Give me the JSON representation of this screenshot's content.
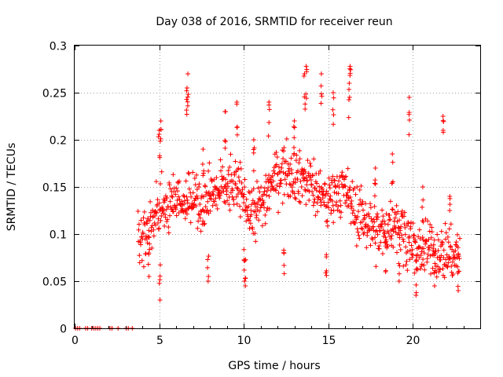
{
  "chart_data": {
    "type": "scatter",
    "title": "Day 038 of 2016, SRMTID for receiver reun",
    "xlabel": "GPS time / hours",
    "ylabel": "SRMTID / TECUs",
    "xlim": [
      0,
      24
    ],
    "ylim": [
      0,
      0.3
    ],
    "x_ticks": [
      0,
      5,
      10,
      15,
      20
    ],
    "x_tick_labels": [
      "0",
      "5",
      "10",
      "15",
      "20"
    ],
    "y_ticks": [
      0,
      0.05,
      0.1,
      0.15,
      0.2,
      0.25,
      0.3
    ],
    "y_tick_labels": [
      "0",
      "0.05",
      "0.1",
      "0.15",
      "0.2",
      "0.25",
      "0.3"
    ],
    "grid": true,
    "marker": "+",
    "color": "#ff0000",
    "series": [
      {
        "name": "SRMTID",
        "trend": [
          [
            0.05,
            0.0
          ],
          [
            3.7,
            0.0
          ],
          [
            3.75,
            0.095
          ],
          [
            4.0,
            0.09
          ],
          [
            4.5,
            0.11
          ],
          [
            5.0,
            0.125
          ],
          [
            5.5,
            0.13
          ],
          [
            6.0,
            0.14
          ],
          [
            6.5,
            0.135
          ],
          [
            7.0,
            0.14
          ],
          [
            7.5,
            0.13
          ],
          [
            8.0,
            0.14
          ],
          [
            8.5,
            0.145
          ],
          [
            9.0,
            0.15
          ],
          [
            9.5,
            0.15
          ],
          [
            10.0,
            0.14
          ],
          [
            10.5,
            0.12
          ],
          [
            11.0,
            0.13
          ],
          [
            11.5,
            0.15
          ],
          [
            12.0,
            0.165
          ],
          [
            12.5,
            0.17
          ],
          [
            13.0,
            0.165
          ],
          [
            13.5,
            0.16
          ],
          [
            14.0,
            0.155
          ],
          [
            14.5,
            0.14
          ],
          [
            15.0,
            0.135
          ],
          [
            15.5,
            0.15
          ],
          [
            16.0,
            0.145
          ],
          [
            16.5,
            0.125
          ],
          [
            17.0,
            0.12
          ],
          [
            17.5,
            0.11
          ],
          [
            18.0,
            0.1
          ],
          [
            18.5,
            0.105
          ],
          [
            19.0,
            0.115
          ],
          [
            19.5,
            0.105
          ],
          [
            20.0,
            0.085
          ],
          [
            20.5,
            0.08
          ],
          [
            21.0,
            0.085
          ],
          [
            21.5,
            0.08
          ],
          [
            22.0,
            0.08
          ],
          [
            22.5,
            0.075
          ],
          [
            22.8,
            0.08
          ]
        ],
        "spikes": [
          [
            6.7,
            0.27
          ],
          [
            6.65,
            0.255
          ],
          [
            8.9,
            0.23
          ],
          [
            11.5,
            0.24
          ],
          [
            13.6,
            0.27
          ],
          [
            13.7,
            0.278
          ],
          [
            14.6,
            0.27
          ],
          [
            15.3,
            0.25
          ],
          [
            16.3,
            0.278
          ],
          [
            16.25,
            0.26
          ],
          [
            19.8,
            0.245
          ],
          [
            21.8,
            0.225
          ],
          [
            5.1,
            0.22
          ],
          [
            5.0,
            0.21
          ],
          [
            7.6,
            0.19
          ],
          [
            9.6,
            0.24
          ],
          [
            10.6,
            0.2
          ],
          [
            13.0,
            0.22
          ],
          [
            17.8,
            0.17
          ],
          [
            18.8,
            0.185
          ],
          [
            20.6,
            0.15
          ],
          [
            22.2,
            0.14
          ],
          [
            5.05,
            0.03
          ],
          [
            7.9,
            0.05
          ],
          [
            10.05,
            0.05
          ],
          [
            10.1,
            0.045
          ],
          [
            12.4,
            0.058
          ],
          [
            14.9,
            0.056
          ],
          [
            19.2,
            0.05
          ],
          [
            20.2,
            0.035
          ],
          [
            21.3,
            0.045
          ],
          [
            22.7,
            0.04
          ],
          [
            4.4,
            0.055
          ],
          [
            18.4,
            0.06
          ]
        ],
        "noise_sigma": 0.03
      }
    ]
  }
}
